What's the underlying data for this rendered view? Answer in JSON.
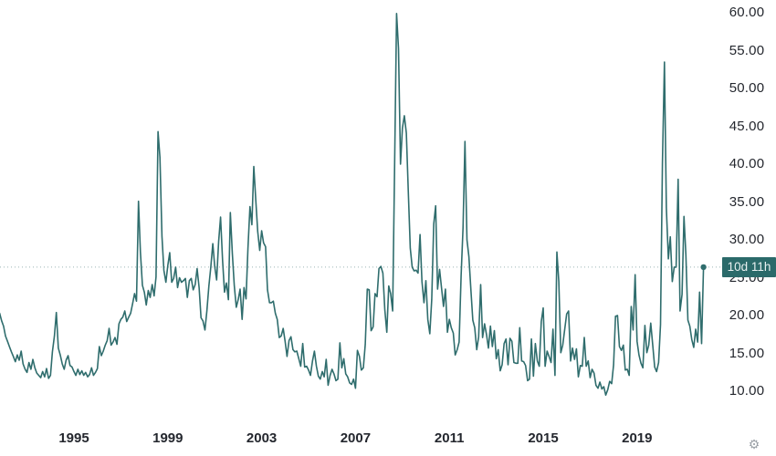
{
  "colors": {
    "background": "#ffffff",
    "line": "#2f6d6d",
    "axis_text": "#24272e",
    "price_dotted_line": "#9ab5b5",
    "last_point_dot": "#2f6d6d",
    "gear_icon": "#9aa0a6"
  },
  "countdown_badge": {
    "label": "10d 11h",
    "background": "#2b6a6a",
    "text_color": "#e9f1f1"
  },
  "icons": {
    "gear": "⚙"
  },
  "current_price": 26.4,
  "chart_data": {
    "type": "line",
    "title": "",
    "interval": "monthly",
    "legend": "none",
    "grid": "off",
    "x_start": {
      "year": 1991,
      "month": 11
    },
    "x_end": {
      "year": 2021,
      "month": 11
    },
    "x_tick_labels": [
      "1995",
      "1999",
      "2003",
      "2007",
      "2011",
      "2015",
      "2019"
    ],
    "x_tick_years": [
      1995,
      1999,
      2003,
      2007,
      2011,
      2015,
      2019
    ],
    "y_tick_labels": [
      "60.00",
      "55.00",
      "50.00",
      "45.00",
      "40.00",
      "35.00",
      "30.00",
      "25.00",
      "20.00",
      "15.00",
      "10.00"
    ],
    "y_tick_values": [
      60,
      55,
      50,
      45,
      40,
      35,
      30,
      25,
      20,
      15,
      10
    ],
    "ylim": [
      6.5,
      61.7
    ],
    "x_domain_years": [
      1991.83,
      2021.87
    ],
    "values": [
      20.3,
      19.3,
      18.6,
      17.3,
      16.6,
      15.9,
      15.2,
      14.6,
      13.9,
      14.8,
      14.1,
      15.3,
      13.6,
      12.9,
      12.5,
      13.8,
      12.9,
      14.2,
      13.1,
      12.4,
      12.1,
      11.8,
      12.6,
      11.9,
      13.0,
      11.7,
      12.1,
      15.2,
      17.3,
      20.4,
      15.7,
      14.8,
      13.6,
      12.9,
      14.1,
      14.7,
      13.4,
      13.2,
      12.6,
      12.1,
      12.9,
      12.2,
      12.7,
      12.1,
      12.5,
      11.9,
      12.2,
      13.1,
      12.1,
      12.5,
      13.0,
      15.9,
      14.7,
      15.3,
      16.1,
      16.7,
      18.3,
      16.1,
      16.5,
      17.1,
      16.2,
      18.9,
      19.5,
      19.8,
      20.6,
      19.2,
      19.8,
      20.3,
      21.6,
      22.9,
      21.9,
      35.1,
      28.4,
      24.0,
      23.1,
      21.4,
      23.3,
      22.4,
      24.1,
      22.6,
      25.1,
      44.3,
      40.9,
      30.5,
      26.0,
      24.4,
      26.6,
      28.3,
      24.4,
      24.9,
      26.4,
      23.7,
      25.0,
      24.4,
      24.6,
      24.9,
      22.4,
      24.6,
      24.9,
      23.4,
      24.1,
      26.2,
      23.7,
      19.7,
      19.3,
      18.1,
      20.6,
      23.9,
      26.4,
      29.5,
      26.5,
      24.7,
      29.8,
      33.0,
      27.3,
      23.1,
      24.3,
      22.1,
      33.6,
      28.2,
      24.0,
      21.1,
      22.1,
      23.5,
      19.5,
      23.7,
      22.2,
      28.9,
      34.4,
      32.0,
      39.7,
      35.2,
      31.1,
      28.6,
      31.2,
      29.6,
      29.1,
      23.4,
      21.7,
      21.7,
      21.9,
      20.3,
      19.5,
      17.1,
      17.3,
      18.3,
      16.6,
      14.6,
      16.7,
      17.2,
      15.5,
      15.2,
      15.3,
      14.3,
      13.3,
      16.3,
      13.2,
      13.3,
      12.8,
      12.1,
      14.0,
      15.3,
      13.3,
      12.0,
      11.6,
      12.6,
      11.9,
      14.2,
      10.8,
      12.1,
      12.9,
      12.3,
      11.4,
      11.6,
      16.4,
      13.1,
      14.3,
      12.3,
      11.9,
      11.1,
      10.9,
      11.6,
      10.4,
      15.4,
      14.6,
      12.8,
      13.1,
      16.2,
      23.5,
      23.4,
      18.0,
      18.5,
      22.9,
      22.5,
      26.2,
      26.5,
      25.6,
      20.8,
      17.8,
      23.9,
      22.9,
      20.6,
      39.4,
      59.9,
      55.3,
      40.0,
      44.8,
      46.4,
      44.1,
      36.5,
      28.9,
      26.4,
      25.9,
      26.0,
      25.6,
      30.7,
      24.5,
      21.7,
      24.6,
      19.5,
      17.6,
      22.1,
      32.1,
      34.5,
      23.5,
      26.1,
      23.7,
      21.2,
      23.5,
      17.8,
      19.5,
      18.4,
      17.7,
      14.8,
      15.5,
      16.5,
      25.3,
      31.6,
      43.0,
      30.0,
      27.8,
      23.4,
      19.4,
      18.4,
      15.5,
      17.2,
      24.1,
      17.1,
      18.9,
      17.5,
      15.7,
      18.6,
      15.9,
      18.0,
      14.3,
      15.5,
      12.7,
      13.5,
      16.3,
      16.9,
      13.5,
      17.0,
      16.6,
      13.8,
      13.7,
      13.7,
      18.4,
      14.0,
      13.9,
      13.4,
      11.4,
      11.6,
      16.9,
      12.0,
      16.3,
      14.0,
      13.3,
      19.2,
      21.0,
      13.3,
      15.3,
      14.6,
      13.8,
      18.2,
      12.1,
      28.4,
      24.5,
      15.1,
      16.1,
      18.2,
      20.2,
      20.6,
      14.0,
      15.7,
      14.2,
      15.6,
      11.9,
      13.4,
      13.3,
      17.1,
      13.3,
      14.0,
      11.8,
      12.9,
      12.4,
      10.8,
      10.4,
      11.2,
      10.3,
      10.6,
      9.5,
      10.2,
      11.3,
      11.0,
      13.5,
      19.9,
      20.0,
      15.9,
      15.4,
      16.1,
      12.8,
      12.9,
      12.1,
      21.2,
      18.1,
      25.4,
      16.6,
      14.8,
      13.7,
      13.1,
      18.7,
      15.1,
      16.1,
      19.0,
      16.2,
      13.2,
      12.6,
      13.8,
      18.8,
      40.1,
      53.5,
      34.2,
      27.5,
      30.4,
      24.5,
      26.4,
      26.4,
      38.0,
      20.6,
      22.8,
      33.1,
      28.0,
      19.4,
      18.6,
      16.8,
      15.8,
      18.2,
      16.5,
      23.1,
      16.3,
      26.4
    ]
  }
}
